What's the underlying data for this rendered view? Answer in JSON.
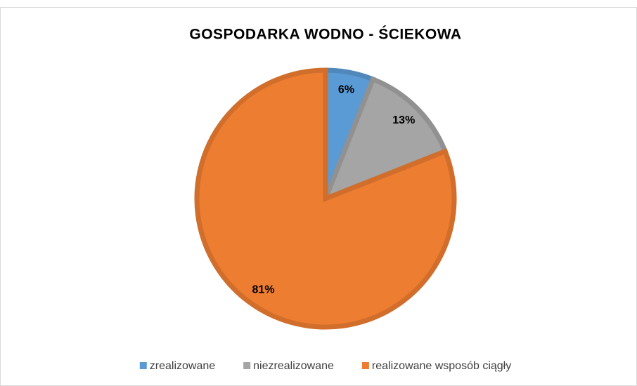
{
  "chart_data": {
    "type": "pie",
    "title": "GOSPODARKA WODNO - ŚCIEKOWA",
    "categories": [
      "zrealizowane",
      "niezrealizowane",
      "realizowane wsposób ciągły"
    ],
    "values": [
      6,
      13,
      81
    ],
    "value_labels": [
      "6%",
      "13%",
      "81%"
    ],
    "colors": [
      "#5b9bd5",
      "#a5a5a5",
      "#ed7d31"
    ],
    "legend": "bottom"
  }
}
